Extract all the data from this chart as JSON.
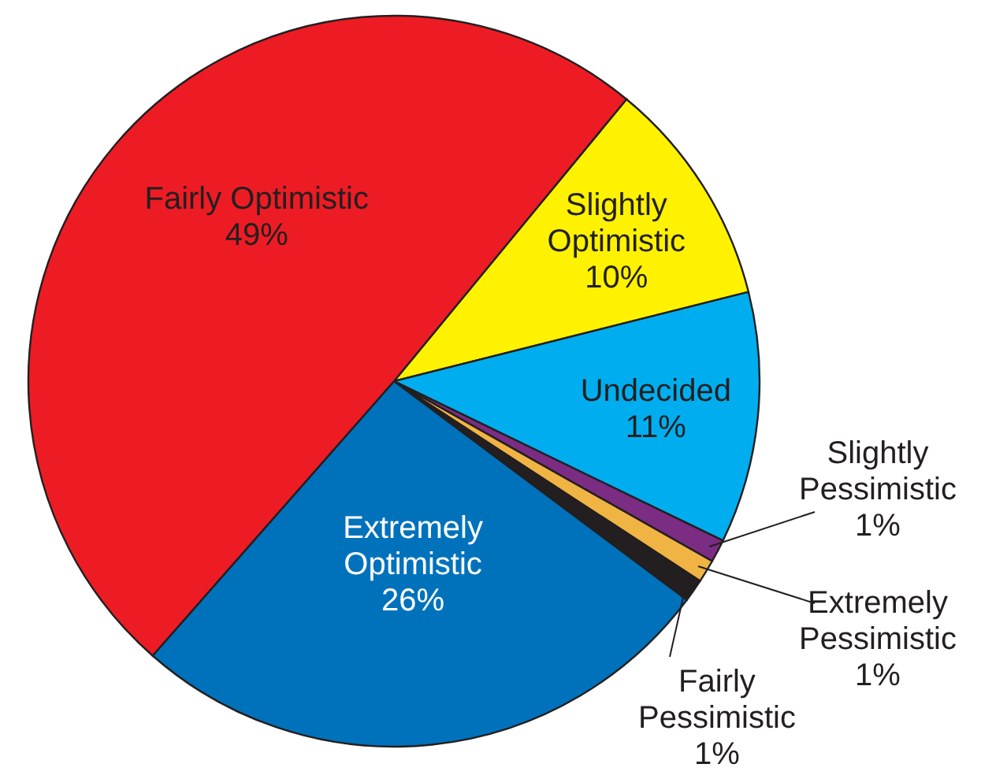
{
  "chart_data": {
    "type": "pie",
    "categories": [
      "Slightly Optimistic",
      "Undecided",
      "Slightly Pessimistic",
      "Extremely Pessimistic",
      "Fairly Pessimistic",
      "Extremely Optimistic",
      "Fairly Optimistic"
    ],
    "values": [
      10,
      11,
      1,
      1,
      1,
      26,
      49
    ],
    "value_labels": [
      "10%",
      "11%",
      "1%",
      "1%",
      "1%",
      "26%",
      "49%"
    ],
    "colors": [
      "#fff200",
      "#00aeef",
      "#7b2c83",
      "#f0b444",
      "#231f20",
      "#0072bc",
      "#ed1c24"
    ]
  }
}
